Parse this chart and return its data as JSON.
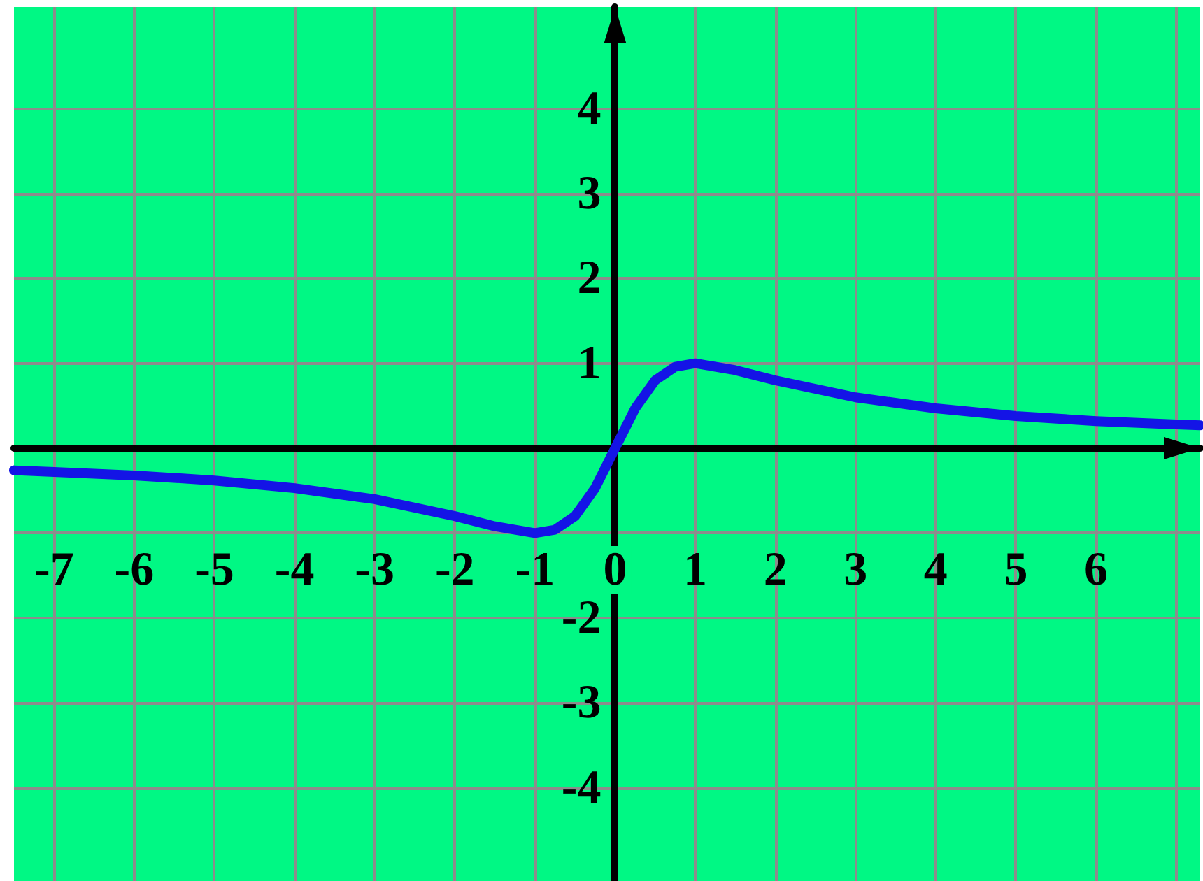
{
  "chart_data": {
    "type": "line",
    "x": [
      -7.5,
      -7,
      -6,
      -5,
      -4,
      -3,
      -2,
      -1.5,
      -1,
      -0.75,
      -0.5,
      -0.25,
      0,
      0.25,
      0.5,
      0.75,
      1,
      1.5,
      2,
      3,
      4,
      5,
      6,
      7,
      7.3
    ],
    "series": [
      {
        "color": "#1414e6",
        "values": [
          -0.26,
          -0.28,
          -0.32,
          -0.38,
          -0.47,
          -0.6,
          -0.8,
          -0.92,
          -1,
          -0.96,
          -0.8,
          -0.47,
          0,
          0.47,
          0.8,
          0.96,
          1,
          0.92,
          0.8,
          0.6,
          0.47,
          0.38,
          0.32,
          0.28,
          0.27
        ]
      }
    ],
    "xlim": [
      -7.5,
      7.3
    ],
    "ylim": [
      -5.1,
      5.2
    ],
    "xticks": [
      -7,
      -6,
      -5,
      -4,
      -3,
      -2,
      -1,
      0,
      1,
      2,
      3,
      4,
      5,
      6,
      {
        "value": 7,
        "label": null
      }
    ],
    "yticks": [
      -4,
      -3,
      -2,
      {
        "value": -1,
        "label": null
      },
      {
        "value": 0,
        "label": null
      },
      1,
      2,
      3,
      4
    ],
    "grid": true,
    "line_style": "solid"
  }
}
